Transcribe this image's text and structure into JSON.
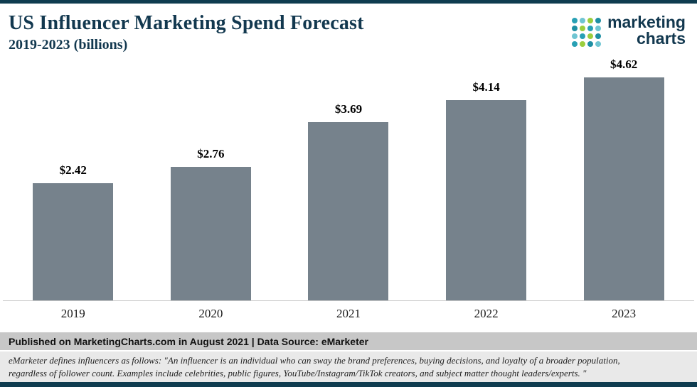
{
  "header": {
    "title": "US Influencer Marketing Spend Forecast",
    "subtitle": "2019-2023 (billions)"
  },
  "logo": {
    "line1": "marketing",
    "line2": "charts",
    "dot_colors": [
      "#28A0B4",
      "#6FC5D2",
      "#9BCE3E",
      "#1E8FA3",
      "#1E8FA3",
      "#9BCE3E",
      "#28A0B4",
      "#6FC5D2",
      "#6FC5D2",
      "#28A0B4",
      "#9BCE3E",
      "#1E8FA3",
      "#28A0B4",
      "#9BCE3E",
      "#1E8FA3",
      "#6FC5D2"
    ]
  },
  "chart_data": {
    "type": "bar",
    "title": "US Influencer Marketing Spend Forecast 2019-2023 (billions)",
    "categories": [
      "2019",
      "2020",
      "2021",
      "2022",
      "2023"
    ],
    "values": [
      2.42,
      2.76,
      3.69,
      4.14,
      4.62
    ],
    "value_labels": [
      "$2.42",
      "$2.76",
      "$3.69",
      "$4.14",
      "$4.62"
    ],
    "xlabel": "",
    "ylabel": "",
    "ylim": [
      0,
      5
    ],
    "grid": false,
    "legend": false,
    "bar_color": "#76828C"
  },
  "footer": {
    "source": "Published on MarketingCharts.com in August 2021 | Data Source: eMarketer",
    "note_line1": "eMarketer defines influencers as follows: \"An influencer is an individual who can sway the brand preferences, buying decisions, and loyalty of a broader population,",
    "note_line2": "regardless of follower count. Examples include celebrities, public figures, YouTube/Instagram/TikTok creators, and subject matter thought leaders/experts. \""
  },
  "colors": {
    "border_teal": "#0F3C50",
    "title_navy": "#12384F",
    "bar_slate": "#76828C",
    "source_bar_bg": "#C7C7C7",
    "footnote_bg": "#E9E9E9"
  }
}
